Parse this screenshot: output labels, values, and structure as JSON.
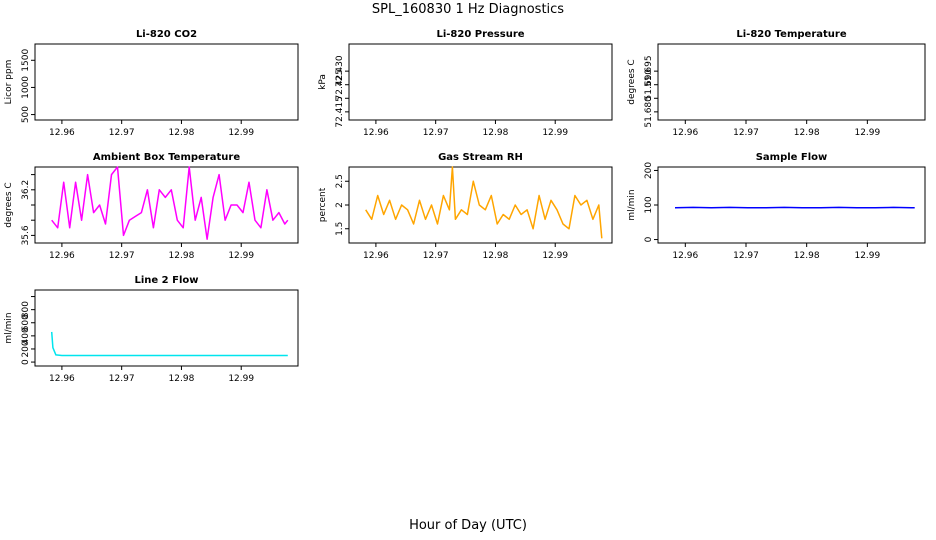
{
  "figure": {
    "title": "SPL_160830  1 Hz Diagnostics",
    "xlabel": "Hour of Day (UTC)"
  },
  "chart_data": [
    {
      "id": "co2",
      "type": "line",
      "title": "Li-820 CO2",
      "ylabel": "Licor ppm",
      "color": "#000000",
      "xlim": [
        12.9555,
        12.9995
      ],
      "ylim": [
        400,
        1800
      ],
      "xticks": [
        12.96,
        12.97,
        12.98,
        12.99
      ],
      "yticks": [
        500,
        1000,
        1500
      ],
      "xtick_labels": [
        "12.96",
        "12.97",
        "12.98",
        "12.99"
      ],
      "ytick_labels": [
        "500",
        "1000",
        "1500"
      ],
      "series": []
    },
    {
      "id": "pressure",
      "type": "line",
      "title": "Li-820 Pressure",
      "ylabel": "kPa",
      "color": "#000000",
      "xlim": [
        12.9555,
        12.9995
      ],
      "ylim": [
        72.412,
        72.44
      ],
      "xticks": [
        12.96,
        12.97,
        12.98,
        12.99
      ],
      "yticks": [
        72.415,
        72.42,
        72.425,
        72.43
      ],
      "xtick_labels": [
        "12.96",
        "12.97",
        "12.98",
        "12.99"
      ],
      "ytick_labels": [
        "72.415",
        "",
        "72.425",
        "72.430"
      ],
      "series": []
    },
    {
      "id": "temperature",
      "type": "line",
      "title": "Li-820 Temperature",
      "ylabel": "degrees C",
      "color": "#000000",
      "xlim": [
        12.9555,
        12.9995
      ],
      "ylim": [
        51.677,
        51.705
      ],
      "xticks": [
        12.96,
        12.97,
        12.98,
        12.99
      ],
      "yticks": [
        51.68,
        51.685,
        51.69,
        51.695
      ],
      "xtick_labels": [
        "12.96",
        "12.97",
        "12.98",
        "12.99"
      ],
      "ytick_labels": [
        "51.680",
        "",
        "51.690",
        "51.695"
      ],
      "series": []
    },
    {
      "id": "ambient",
      "type": "line",
      "title": "Ambient Box Temperature",
      "ylabel": "degrees C",
      "color": "#ff00ff",
      "xlim": [
        12.9555,
        12.9995
      ],
      "ylim": [
        35.5,
        36.5
      ],
      "xticks": [
        12.96,
        12.97,
        12.98,
        12.99
      ],
      "yticks": [
        35.6,
        35.8,
        36.0,
        36.2,
        36.4
      ],
      "xtick_labels": [
        "12.96",
        "12.97",
        "12.98",
        "12.99"
      ],
      "ytick_labels": [
        "35.6",
        "",
        "",
        "36.2",
        ""
      ],
      "series": [
        {
          "name": "Ambient Box Temperature",
          "x": [
            12.9583,
            12.9593,
            12.9603,
            12.9613,
            12.9623,
            12.9633,
            12.9643,
            12.9653,
            12.9663,
            12.9673,
            12.9683,
            12.9693,
            12.9703,
            12.9713,
            12.9723,
            12.9733,
            12.9743,
            12.9753,
            12.9763,
            12.9773,
            12.9783,
            12.9793,
            12.9803,
            12.9813,
            12.9823,
            12.9833,
            12.9843,
            12.9853,
            12.9863,
            12.9873,
            12.9883,
            12.9893,
            12.9903,
            12.9913,
            12.9923,
            12.9933,
            12.9943,
            12.9953,
            12.9963,
            12.9973,
            12.9978
          ],
          "values": [
            35.8,
            35.7,
            36.3,
            35.7,
            36.3,
            35.8,
            36.4,
            35.9,
            36.0,
            35.75,
            36.4,
            36.5,
            35.6,
            35.8,
            35.85,
            35.9,
            36.2,
            35.7,
            36.2,
            36.1,
            36.2,
            35.8,
            35.7,
            36.5,
            35.8,
            36.1,
            35.55,
            36.1,
            36.4,
            35.8,
            36.0,
            36.0,
            35.9,
            36.3,
            35.8,
            35.7,
            36.2,
            35.8,
            35.9,
            35.75,
            35.8
          ]
        }
      ]
    },
    {
      "id": "rh",
      "type": "line",
      "title": "Gas Stream RH",
      "ylabel": "percent",
      "color": "#ffa500",
      "xlim": [
        12.9555,
        12.9995
      ],
      "ylim": [
        1.2,
        2.8
      ],
      "xticks": [
        12.96,
        12.97,
        12.98,
        12.99
      ],
      "yticks": [
        1.5,
        2.0,
        2.5
      ],
      "xtick_labels": [
        "12.96",
        "12.97",
        "12.98",
        "12.99"
      ],
      "ytick_labels": [
        "1.5",
        "2",
        "2.5"
      ],
      "series": [
        {
          "name": "Gas Stream RH",
          "x": [
            12.9583,
            12.9593,
            12.9603,
            12.9613,
            12.9623,
            12.9633,
            12.9643,
            12.9653,
            12.9663,
            12.9673,
            12.9683,
            12.9693,
            12.9703,
            12.9713,
            12.9723,
            12.9728,
            12.9733,
            12.9743,
            12.9753,
            12.9763,
            12.9773,
            12.9783,
            12.9793,
            12.9803,
            12.9813,
            12.9823,
            12.9833,
            12.9843,
            12.9853,
            12.9863,
            12.9873,
            12.9883,
            12.9893,
            12.9903,
            12.9913,
            12.9923,
            12.9933,
            12.9943,
            12.9953,
            12.9963,
            12.9973,
            12.9978
          ],
          "values": [
            1.9,
            1.7,
            2.2,
            1.8,
            2.1,
            1.7,
            2.0,
            1.9,
            1.6,
            2.1,
            1.7,
            2.0,
            1.6,
            2.2,
            1.9,
            2.8,
            1.7,
            1.9,
            1.8,
            2.5,
            2.0,
            1.9,
            2.2,
            1.6,
            1.8,
            1.7,
            2.0,
            1.8,
            1.9,
            1.5,
            2.2,
            1.7,
            2.1,
            1.9,
            1.6,
            1.5,
            2.2,
            2.0,
            2.1,
            1.7,
            2.0,
            1.3
          ]
        }
      ]
    },
    {
      "id": "sampleflow",
      "type": "line",
      "title": "Sample Flow",
      "ylabel": "ml/min",
      "color": "#0000ff",
      "xlim": [
        12.9555,
        12.9995
      ],
      "ylim": [
        -10,
        210
      ],
      "xticks": [
        12.96,
        12.97,
        12.98,
        12.99
      ],
      "yticks": [
        0,
        100,
        200
      ],
      "xtick_labels": [
        "12.96",
        "12.97",
        "12.98",
        "12.99"
      ],
      "ytick_labels": [
        "0",
        "100",
        "200"
      ],
      "series": [
        {
          "name": "Sample Flow",
          "x": [
            12.9583,
            12.9613,
            12.9643,
            12.9673,
            12.9703,
            12.9733,
            12.9763,
            12.9793,
            12.9823,
            12.9853,
            12.9883,
            12.9913,
            12.9943,
            12.9973,
            12.9978
          ],
          "values": [
            92,
            93,
            92,
            93,
            92,
            92,
            93,
            92,
            92,
            93,
            92,
            92,
            93,
            92,
            92
          ]
        }
      ]
    },
    {
      "id": "line2flow",
      "type": "line",
      "title": "Line 2 Flow",
      "ylabel": "ml/min",
      "color": "#00e5ee",
      "xlim": [
        12.9555,
        12.9995
      ],
      "ylim": [
        -60,
        1100
      ],
      "xticks": [
        12.96,
        12.97,
        12.98,
        12.99
      ],
      "yticks": [
        0,
        200,
        400,
        600,
        800,
        1000
      ],
      "xtick_labels": [
        "12.96",
        "12.97",
        "12.98",
        "12.99"
      ],
      "ytick_labels": [
        "0",
        "200",
        "400",
        "600",
        "800",
        ""
      ],
      "series": [
        {
          "name": "Line 2 Flow",
          "x": [
            12.9583,
            12.9585,
            12.959,
            12.96,
            12.962,
            12.965,
            12.97,
            12.975,
            12.98,
            12.985,
            12.99,
            12.995,
            12.9978
          ],
          "values": [
            460,
            220,
            110,
            100,
            100,
            100,
            100,
            100,
            100,
            100,
            100,
            100,
            100
          ]
        }
      ]
    }
  ]
}
